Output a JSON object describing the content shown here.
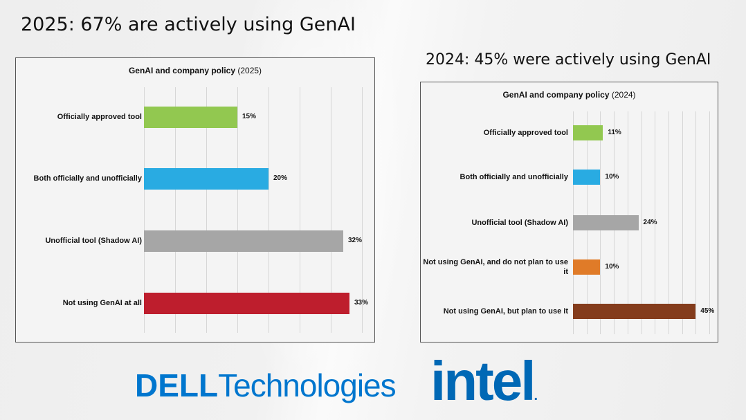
{
  "headings": {
    "left": "2025: 67% are actively using GenAI",
    "right": "2024: 45% were actively using GenAI"
  },
  "chart_data": [
    {
      "type": "bar",
      "orientation": "horizontal",
      "title": "GenAI and company policy",
      "title_suffix": "(2025)",
      "categories": [
        "Officially approved tool",
        "Both officially and unofficially",
        "Unofficial tool (Shadow AI)",
        "Not using GenAI at all"
      ],
      "values": [
        15,
        20,
        32,
        33
      ],
      "labels": [
        "15%",
        "20%",
        "32%",
        "33%"
      ],
      "colors": [
        "#92C850",
        "#29ABE2",
        "#A6A6A6",
        "#BE1E2D"
      ],
      "xlim": [
        0,
        35
      ],
      "grid_step": 5,
      "grid": true
    },
    {
      "type": "bar",
      "orientation": "horizontal",
      "title": "GenAI and company policy",
      "title_suffix": "(2024)",
      "categories": [
        "Officially approved tool",
        "Both officially and unofficially",
        "Unofficial tool (Shadow AI)",
        "Not using GenAI, and do not plan to use it",
        "Not using GenAI, but plan to use it"
      ],
      "values": [
        11,
        10,
        24,
        10,
        45
      ],
      "labels": [
        "11%",
        "10%",
        "24%",
        "10%",
        "45%"
      ],
      "colors": [
        "#92C850",
        "#29ABE2",
        "#A6A6A6",
        "#E07B28",
        "#843C1C"
      ],
      "xlim": [
        0,
        50
      ],
      "grid_step": 5,
      "grid": true
    }
  ],
  "logos": {
    "dell_brand": "DELL",
    "dell_suffix": "Technologies",
    "intel": "intel",
    "intel_mark": "."
  }
}
